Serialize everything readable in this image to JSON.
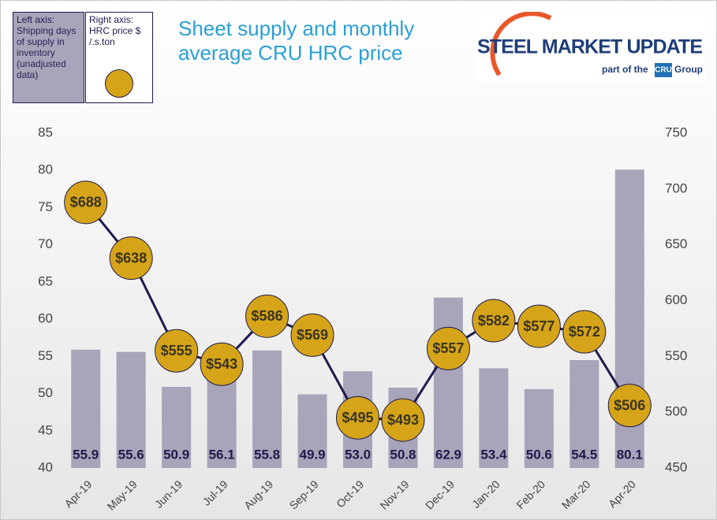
{
  "chart_data": {
    "type": "bar-line",
    "title": "Sheet supply and monthly average CRU HRC price",
    "categories": [
      "Apr-19",
      "May-19",
      "Jun-19",
      "Jul-19",
      "Aug-19",
      "Sep-19",
      "Oct-19",
      "Nov-19",
      "Dec-19",
      "Jan-20",
      "Feb-20",
      "Mar-20",
      "Apr-20"
    ],
    "series": [
      {
        "name": "Shipping days of supply in inventory (unadjusted data)",
        "axis_label": "Left axis:",
        "type": "bar",
        "axis": "y",
        "color": "#a8a4b9",
        "values": [
          55.9,
          55.6,
          50.9,
          56.1,
          55.8,
          49.9,
          53.0,
          50.8,
          62.9,
          53.4,
          50.6,
          54.5,
          80.1
        ],
        "value_labels": [
          "55.9",
          "55.6",
          "50.9",
          "56.1",
          "55.8",
          "49.9",
          "53.0",
          "50.8",
          "62.9",
          "53.4",
          "50.6",
          "54.5",
          "80.1"
        ]
      },
      {
        "name": "HRC price $ /.s.ton",
        "axis_label": "Right axis:",
        "type": "line",
        "axis": "y2",
        "color": "#d6a418",
        "values": [
          688,
          638,
          555,
          543,
          586,
          569,
          495,
          493,
          557,
          582,
          577,
          572,
          506
        ],
        "value_labels": [
          "$688",
          "$638",
          "$555",
          "$543",
          "$586",
          "$569",
          "$495",
          "$493",
          "$557",
          "$582",
          "$577",
          "$572",
          "$506"
        ]
      }
    ],
    "ylim": [
      40,
      85
    ],
    "yticks": [
      40,
      45,
      50,
      55,
      60,
      65,
      70,
      75,
      80,
      85
    ],
    "y2lim": [
      450,
      750
    ],
    "y2ticks": [
      450,
      500,
      550,
      600,
      650,
      700,
      750
    ],
    "grid": false
  },
  "logo": {
    "brand": "STEEL MARKET UPDATE",
    "tagline": "part of the",
    "group_mark": "CRU",
    "group": "Group"
  }
}
